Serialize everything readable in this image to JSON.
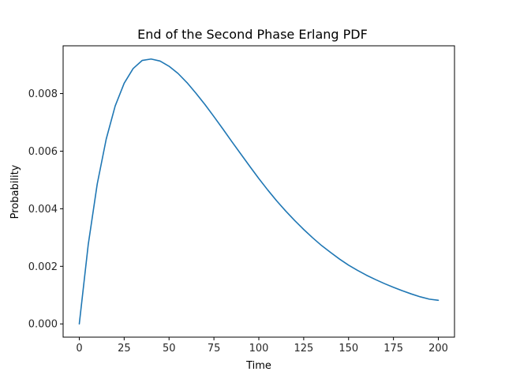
{
  "chart_data": {
    "type": "line",
    "title": "End of the Second Phase Erlang PDF",
    "xlabel": "Time",
    "ylabel": "Probability",
    "xlim": [
      -9,
      209
    ],
    "ylim": [
      -0.00046,
      0.00966
    ],
    "xticks": [
      0,
      25,
      50,
      75,
      100,
      125,
      150,
      175,
      200
    ],
    "yticks": [
      0.0,
      0.002,
      0.004,
      0.006,
      0.008
    ],
    "ytick_labels": [
      "0.000",
      "0.002",
      "0.004",
      "0.006",
      "0.008"
    ],
    "grid": false,
    "legend": "none",
    "series": [
      {
        "color": "#1f77b4",
        "x": [
          0,
          5,
          10,
          15,
          20,
          25,
          30,
          35,
          40,
          45,
          50,
          55,
          60,
          65,
          70,
          75,
          80,
          85,
          90,
          95,
          100,
          105,
          110,
          115,
          120,
          125,
          130,
          135,
          140,
          145,
          150,
          155,
          160,
          165,
          170,
          175,
          180,
          185,
          190,
          195,
          200
        ],
        "values": [
          0.0,
          0.00276,
          0.00486,
          0.00642,
          0.00757,
          0.00836,
          0.00887,
          0.00915,
          0.0092,
          0.00913,
          0.00895,
          0.0087,
          0.00838,
          0.00801,
          0.00762,
          0.0072,
          0.00677,
          0.00633,
          0.0059,
          0.00547,
          0.00505,
          0.00465,
          0.00427,
          0.00392,
          0.00359,
          0.00328,
          0.00299,
          0.00272,
          0.00248,
          0.00225,
          0.00204,
          0.00186,
          0.00169,
          0.00154,
          0.0014,
          0.00127,
          0.00115,
          0.00104,
          0.00094,
          0.00086,
          0.00082
        ]
      }
    ]
  }
}
